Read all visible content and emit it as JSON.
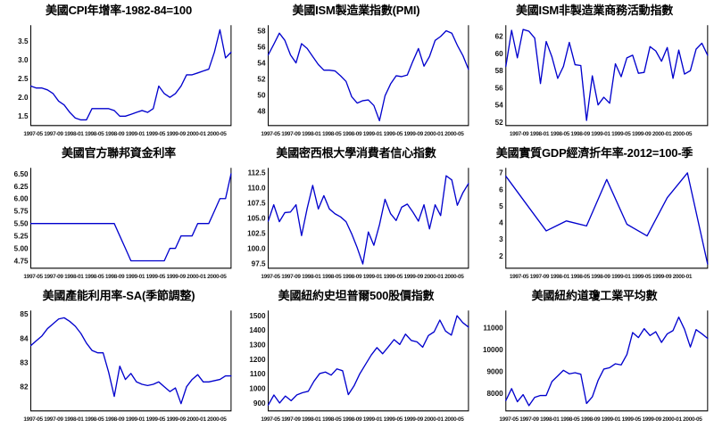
{
  "colors": {
    "line": "#0000cd",
    "axis": "#000000",
    "tick_text": "#111111"
  },
  "chart_data": [
    {
      "type": "line",
      "title": "美國CPI年增率-1982-84=100",
      "x_labels": [
        "1997-05",
        "1997-09",
        "1998-01",
        "1998-05",
        "1998-09",
        "1999-01",
        "1999-05",
        "1999-09",
        "2000-01",
        "2000-05"
      ],
      "y_ticks": [
        "1.5",
        "2.0",
        "2.5",
        "3.0",
        "3.5"
      ],
      "ylim": [
        1.25,
        3.92
      ],
      "values": [
        2.3,
        2.25,
        2.25,
        2.2,
        2.1,
        1.9,
        1.8,
        1.6,
        1.45,
        1.4,
        1.4,
        1.7,
        1.7,
        1.7,
        1.7,
        1.65,
        1.5,
        1.5,
        1.55,
        1.6,
        1.65,
        1.6,
        1.7,
        2.3,
        2.1,
        2.0,
        2.1,
        2.3,
        2.6,
        2.6,
        2.65,
        2.7,
        2.75,
        3.2,
        3.8,
        3.05,
        3.2
      ],
      "xlabel": "",
      "ylabel": "",
      "grid": false,
      "legend": null
    },
    {
      "type": "line",
      "title": "美國ISM製造業指數(PMI)",
      "x_labels": [
        "1997-05",
        "1997-09",
        "1998-01",
        "1998-05",
        "1998-09",
        "1999-01",
        "1999-05",
        "1999-09",
        "2000-01",
        "2000-05"
      ],
      "y_ticks": [
        "48",
        "50",
        "52",
        "54",
        "56",
        "58"
      ],
      "ylim": [
        46.2,
        58.7
      ],
      "values": [
        55.0,
        56.3,
        57.7,
        56.8,
        55.0,
        54.0,
        56.4,
        55.8,
        54.8,
        53.8,
        53.1,
        53.1,
        53.0,
        52.4,
        51.7,
        49.8,
        49.0,
        49.3,
        49.4,
        48.7,
        46.8,
        49.9,
        51.4,
        52.4,
        52.3,
        52.5,
        54.2,
        55.8,
        53.6,
        54.8,
        56.8,
        57.3,
        58.0,
        57.7,
        56.2,
        54.9,
        53.2
      ],
      "xlabel": "",
      "ylabel": "",
      "grid": false,
      "legend": null
    },
    {
      "type": "line",
      "title": "美國ISM非製造業商務活動指數",
      "x_labels": [
        "1997-09",
        "1998-01",
        "1998-05",
        "1998-09",
        "1999-01",
        "1999-05",
        "1999-09",
        "2000-01",
        "2000-05"
      ],
      "y_ticks": [
        "52",
        "54",
        "56",
        "58",
        "60",
        "62"
      ],
      "ylim": [
        51.6,
        63.3
      ],
      "values": [
        58.5,
        62.7,
        59.5,
        62.8,
        62.6,
        61.8,
        56.5,
        61.4,
        59.6,
        57.1,
        58.5,
        61.3,
        58.7,
        58.6,
        52.2,
        57.4,
        54.0,
        54.9,
        54.2,
        58.8,
        57.3,
        59.5,
        59.8,
        57.7,
        57.8,
        60.8,
        60.3,
        59.1,
        60.7,
        57.1,
        60.4,
        57.6,
        58.0,
        60.5,
        61.2,
        59.8
      ],
      "xlabel": "",
      "ylabel": "",
      "grid": false,
      "legend": null
    },
    {
      "type": "line",
      "title": "美國官方聯邦資金利率",
      "x_labels": [
        "1997-05",
        "1997-09",
        "1998-01",
        "1998-05",
        "1998-09",
        "1999-01",
        "1999-05",
        "1999-09",
        "2000-01",
        "2000-05"
      ],
      "y_ticks": [
        "4.75",
        "5.00",
        "5.25",
        "5.50",
        "5.75",
        "6.00",
        "6.25",
        "6.50"
      ],
      "ylim": [
        4.6,
        6.62
      ],
      "values": [
        5.5,
        5.5,
        5.5,
        5.5,
        5.5,
        5.5,
        5.5,
        5.5,
        5.5,
        5.5,
        5.5,
        5.5,
        5.5,
        5.5,
        5.5,
        5.5,
        5.25,
        5.0,
        4.75,
        4.75,
        4.75,
        4.75,
        4.75,
        4.75,
        4.75,
        5.0,
        5.0,
        5.25,
        5.25,
        5.25,
        5.5,
        5.5,
        5.5,
        5.75,
        6.0,
        6.0,
        6.5
      ],
      "xlabel": "",
      "ylabel": "",
      "grid": false,
      "legend": null
    },
    {
      "type": "line",
      "title": "美國密西根大學消費者信心指數",
      "x_labels": [
        "1997-05",
        "1997-09",
        "1998-01",
        "1998-05",
        "1998-09",
        "1999-01",
        "1999-05",
        "1999-09",
        "2000-01",
        "2000-05"
      ],
      "y_ticks": [
        "97.5",
        "100.0",
        "102.5",
        "105.0",
        "107.5",
        "110.0",
        "112.5"
      ],
      "ylim": [
        96.7,
        113.3
      ],
      "values": [
        104.5,
        107.2,
        104.4,
        105.9,
        106.0,
        107.2,
        102.1,
        106.6,
        110.4,
        106.5,
        108.7,
        106.5,
        105.7,
        105.2,
        104.4,
        102.4,
        100.1,
        97.4,
        102.7,
        100.5,
        103.9,
        108.1,
        105.7,
        104.6,
        106.8,
        107.3,
        106.0,
        104.5,
        107.2,
        103.2,
        107.2,
        105.4,
        112.0,
        111.3,
        107.1,
        109.2,
        110.7
      ],
      "xlabel": "",
      "ylabel": "",
      "grid": false,
      "legend": null
    },
    {
      "type": "line",
      "title": "美國實質GDP經濟折年率-2012=100-季",
      "x_labels": [
        "1997-05",
        "1997-09",
        "1998-01",
        "1998-05",
        "1998-09",
        "1999-01",
        "1999-05",
        "1999-09",
        "2000-01"
      ],
      "y_ticks": [
        "2",
        "3",
        "4",
        "5",
        "6",
        "7"
      ],
      "ylim": [
        1.25,
        7.3
      ],
      "values": [
        6.8,
        5.15,
        3.5,
        4.1,
        3.8,
        6.6,
        3.9,
        3.2,
        5.5,
        7.0,
        1.5
      ],
      "xlabel": "",
      "ylabel": "",
      "grid": false,
      "legend": null
    },
    {
      "type": "line",
      "title": "美國產能利用率-SA(季節調整)",
      "x_labels": [
        "1997-05",
        "1997-09",
        "1998-01",
        "1998-05",
        "1998-09",
        "1999-01",
        "1999-05",
        "1999-09",
        "2000-01",
        "2000-05"
      ],
      "y_ticks": [
        "82",
        "83",
        "84",
        "85"
      ],
      "ylim": [
        81.0,
        85.15
      ],
      "values": [
        83.7,
        83.9,
        84.1,
        84.4,
        84.6,
        84.8,
        84.85,
        84.7,
        84.5,
        84.2,
        83.8,
        83.5,
        83.4,
        83.4,
        82.6,
        81.6,
        82.85,
        82.3,
        82.55,
        82.2,
        82.1,
        82.05,
        82.1,
        82.2,
        82.0,
        81.8,
        81.95,
        81.3,
        82.0,
        82.3,
        82.5,
        82.2,
        82.2,
        82.25,
        82.3,
        82.45,
        82.45
      ],
      "xlabel": "",
      "ylabel": "",
      "grid": false,
      "legend": null
    },
    {
      "type": "line",
      "title": "美國紐約史坦普爾500股價指數",
      "x_labels": [
        "1997-05",
        "1997-09",
        "1998-01",
        "1998-05",
        "1998-09",
        "1999-01",
        "1999-05",
        "1999-09",
        "2000-01",
        "2000-05"
      ],
      "y_ticks": [
        "900",
        "1000",
        "1100",
        "1200",
        "1300",
        "1400",
        "1500"
      ],
      "ylim": [
        845,
        1535
      ],
      "values": [
        885,
        954,
        899,
        947,
        915,
        955,
        970,
        980,
        1049,
        1102,
        1112,
        1091,
        1134,
        1121,
        957,
        1017,
        1099,
        1164,
        1229,
        1280,
        1238,
        1286,
        1335,
        1302,
        1373,
        1329,
        1320,
        1283,
        1363,
        1389,
        1469,
        1394,
        1366,
        1499,
        1452,
        1421
      ],
      "xlabel": "",
      "ylabel": "",
      "grid": false,
      "legend": null
    },
    {
      "type": "line",
      "title": "美國紐約道瓊工業平均數",
      "x_labels": [
        "1997-05",
        "1997-09",
        "1998-01",
        "1998-05",
        "1998-09",
        "1999-01",
        "1999-05",
        "1999-09",
        "2000-01",
        "2000-05"
      ],
      "y_ticks": [
        "8000",
        "9000",
        "10000",
        "11000"
      ],
      "ylim": [
        7200,
        11800
      ],
      "values": [
        7672,
        8222,
        7622,
        7945,
        7442,
        7823,
        7908,
        7906,
        8545,
        8800,
        9063,
        8900,
        8952,
        8883,
        7539,
        7843,
        8592,
        9117,
        9181,
        9359,
        9307,
        9786,
        10789,
        10560,
        10971,
        10655,
        10829,
        10337,
        10730,
        10878,
        11497,
        10941,
        10128,
        10922,
        10734,
        10522
      ],
      "xlabel": "",
      "ylabel": "",
      "grid": false,
      "legend": null
    }
  ]
}
